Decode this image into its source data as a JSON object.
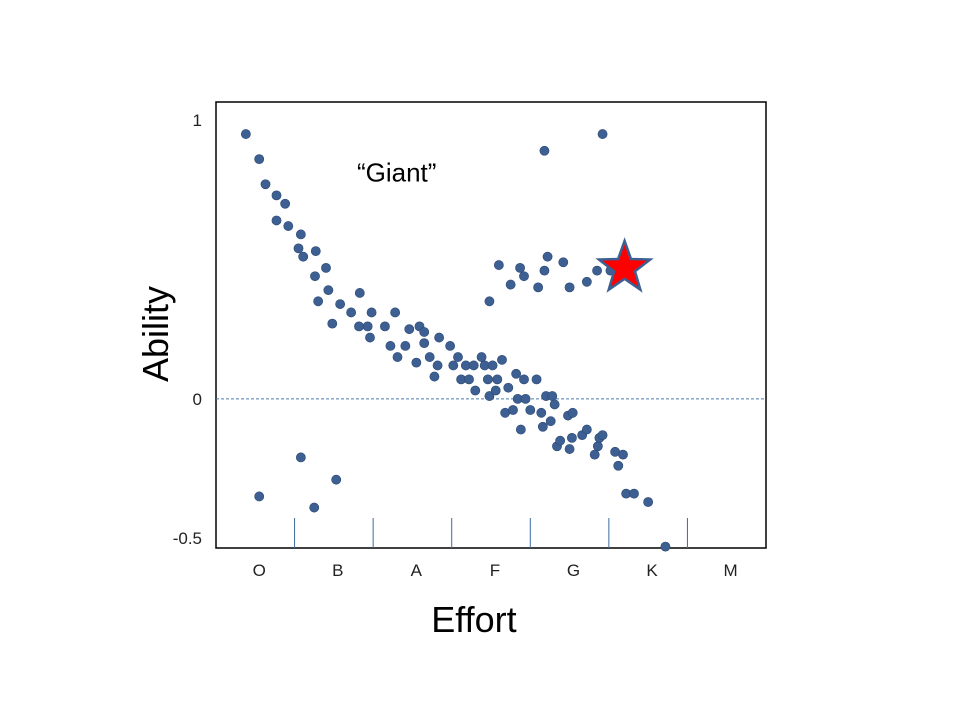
{
  "chart_data": {
    "type": "scatter",
    "title": "",
    "xlabel": "Effort",
    "ylabel": "Ability",
    "x_categories": [
      "O",
      "B",
      "A",
      "F",
      "G",
      "K",
      "M"
    ],
    "y_ticks": [
      {
        "value": 1,
        "label": "1"
      },
      {
        "value": 0,
        "label": "0"
      },
      {
        "value": -0.5,
        "label": "-0.5"
      }
    ],
    "ylim": [
      -0.535,
      1.065
    ],
    "xlim": [
      0,
      7
    ],
    "reference_line": {
      "y": 0,
      "style": "dashed"
    },
    "grid": false,
    "legend": "none",
    "annotations": [
      {
        "text": "“Giant”",
        "x": 2.3,
        "y": 0.78
      }
    ],
    "highlight": {
      "marker": "star",
      "x": 5.2,
      "y": 0.47,
      "color": "#ff0000"
    },
    "colors": {
      "points": "#3d5f91",
      "star_fill": "#ff0000",
      "star_edge": "#3d5f91",
      "zero_line": "#4a7ab0"
    },
    "series": [
      {
        "points": [
          [
            0.38,
            0.95
          ],
          [
            0.55,
            0.86
          ],
          [
            0.63,
            0.77
          ],
          [
            0.77,
            0.73
          ],
          [
            0.88,
            0.7
          ],
          [
            0.77,
            0.64
          ],
          [
            0.92,
            0.62
          ],
          [
            1.08,
            0.59
          ],
          [
            1.05,
            0.54
          ],
          [
            1.11,
            0.51
          ],
          [
            1.27,
            0.53
          ],
          [
            1.4,
            0.47
          ],
          [
            1.26,
            0.44
          ],
          [
            1.3,
            0.35
          ],
          [
            1.43,
            0.39
          ],
          [
            1.58,
            0.34
          ],
          [
            1.72,
            0.31
          ],
          [
            1.83,
            0.38
          ],
          [
            1.48,
            0.27
          ],
          [
            1.82,
            0.26
          ],
          [
            1.93,
            0.26
          ],
          [
            1.98,
            0.31
          ],
          [
            1.96,
            0.22
          ],
          [
            2.15,
            0.26
          ],
          [
            2.22,
            0.19
          ],
          [
            2.28,
            0.31
          ],
          [
            2.31,
            0.15
          ],
          [
            2.41,
            0.19
          ],
          [
            2.46,
            0.25
          ],
          [
            2.55,
            0.13
          ],
          [
            2.59,
            0.26
          ],
          [
            2.65,
            0.24
          ],
          [
            2.65,
            0.2
          ],
          [
            2.72,
            0.15
          ],
          [
            2.82,
            0.12
          ],
          [
            2.78,
            0.08
          ],
          [
            2.84,
            0.22
          ],
          [
            2.98,
            0.19
          ],
          [
            3.02,
            0.12
          ],
          [
            3.08,
            0.15
          ],
          [
            3.18,
            0.12
          ],
          [
            3.12,
            0.07
          ],
          [
            3.22,
            0.07
          ],
          [
            3.28,
            0.12
          ],
          [
            3.3,
            0.03
          ],
          [
            3.38,
            0.15
          ],
          [
            3.46,
            0.07
          ],
          [
            3.42,
            0.12
          ],
          [
            3.48,
            0.01
          ],
          [
            3.52,
            0.12
          ],
          [
            3.56,
            0.03
          ],
          [
            3.58,
            0.07
          ],
          [
            3.64,
            0.14
          ],
          [
            3.68,
            -0.05
          ],
          [
            3.72,
            0.04
          ],
          [
            3.78,
            -0.04
          ],
          [
            3.82,
            0.09
          ],
          [
            3.84,
            0.0
          ],
          [
            3.92,
            0.07
          ],
          [
            3.88,
            -0.11
          ],
          [
            3.94,
            0.0
          ],
          [
            4.0,
            -0.04
          ],
          [
            4.08,
            0.07
          ],
          [
            4.14,
            -0.05
          ],
          [
            4.16,
            -0.1
          ],
          [
            4.2,
            0.01
          ],
          [
            4.28,
            0.01
          ],
          [
            4.26,
            -0.08
          ],
          [
            4.31,
            -0.02
          ],
          [
            4.34,
            -0.17
          ],
          [
            4.38,
            -0.15
          ],
          [
            4.48,
            -0.06
          ],
          [
            4.5,
            -0.18
          ],
          [
            4.53,
            -0.14
          ],
          [
            4.54,
            -0.05
          ],
          [
            4.66,
            -0.13
          ],
          [
            4.72,
            -0.11
          ],
          [
            4.82,
            -0.2
          ],
          [
            4.86,
            -0.17
          ],
          [
            4.88,
            -0.14
          ],
          [
            4.92,
            -0.13
          ],
          [
            5.08,
            -0.19
          ],
          [
            5.12,
            -0.24
          ],
          [
            5.18,
            -0.2
          ],
          [
            5.22,
            -0.34
          ],
          [
            5.32,
            -0.34
          ],
          [
            5.5,
            -0.37
          ],
          [
            5.72,
            -0.53
          ],
          [
            3.48,
            0.35
          ],
          [
            3.6,
            0.48
          ],
          [
            3.75,
            0.41
          ],
          [
            3.87,
            0.47
          ],
          [
            3.92,
            0.44
          ],
          [
            4.1,
            0.4
          ],
          [
            4.18,
            0.46
          ],
          [
            4.22,
            0.51
          ],
          [
            4.42,
            0.49
          ],
          [
            4.5,
            0.4
          ],
          [
            4.72,
            0.42
          ],
          [
            4.85,
            0.46
          ],
          [
            5.02,
            0.46
          ],
          [
            4.18,
            0.89
          ],
          [
            4.92,
            0.95
          ],
          [
            0.55,
            -0.35
          ],
          [
            1.08,
            -0.21
          ],
          [
            1.25,
            -0.39
          ],
          [
            1.53,
            -0.29
          ]
        ]
      }
    ]
  }
}
